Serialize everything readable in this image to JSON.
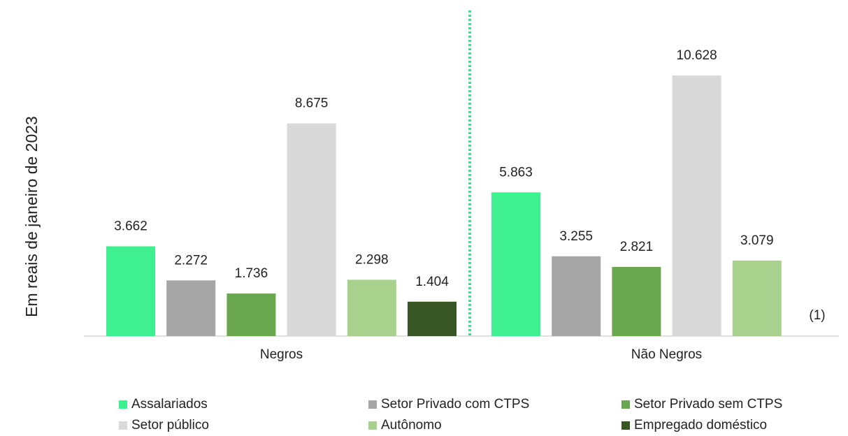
{
  "chart_data": {
    "type": "bar",
    "y_label": "Em reais de janeiro de 2023",
    "categories": [
      "Negros",
      "Não Negros"
    ],
    "ylim": [
      0,
      12000
    ],
    "series": [
      {
        "name": "Assalariados",
        "color": "#3ef08f",
        "values": [
          3662,
          5863
        ],
        "value_labels": [
          "3.662",
          "5.863"
        ]
      },
      {
        "name": "Setor Privado com CTPS",
        "color": "#a6a6a6",
        "values": [
          2272,
          3255
        ],
        "value_labels": [
          "2.272",
          "3.255"
        ]
      },
      {
        "name": "Setor Privado sem CTPS",
        "color": "#6aa84f",
        "values": [
          1736,
          2821
        ],
        "value_labels": [
          "1.736",
          "2.821"
        ]
      },
      {
        "name": "Setor público",
        "color": "#d9d9d9",
        "values": [
          8675,
          10628
        ],
        "value_labels": [
          "8.675",
          "10.628"
        ]
      },
      {
        "name": "Autônomo",
        "color": "#a9d18e",
        "values": [
          2298,
          3079
        ],
        "value_labels": [
          "2.298",
          "3.079"
        ]
      },
      {
        "name": "Empregado doméstico",
        "color": "#375623",
        "values": [
          1404,
          null
        ],
        "value_labels": [
          "1.404",
          null
        ]
      }
    ],
    "annotation": "(1)"
  }
}
